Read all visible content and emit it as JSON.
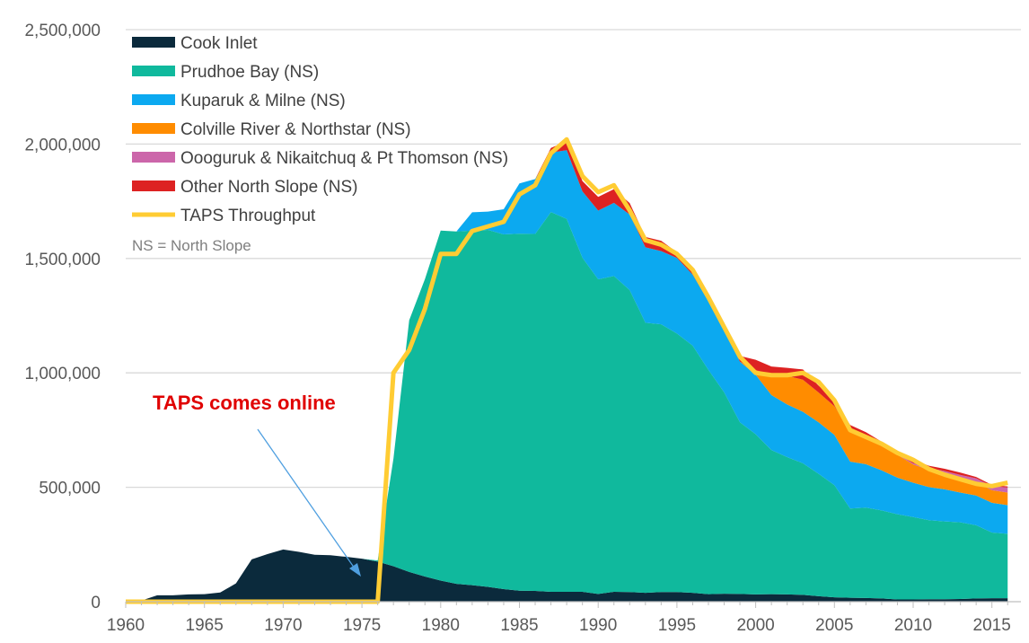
{
  "chart_data": {
    "type": "area",
    "stacked": true,
    "x": [
      1960,
      1961,
      1962,
      1963,
      1964,
      1965,
      1966,
      1967,
      1968,
      1969,
      1970,
      1971,
      1972,
      1973,
      1974,
      1975,
      1976,
      1977,
      1978,
      1979,
      1980,
      1981,
      1982,
      1983,
      1984,
      1985,
      1986,
      1987,
      1988,
      1989,
      1990,
      1991,
      1992,
      1993,
      1994,
      1995,
      1996,
      1997,
      1998,
      1999,
      2000,
      2001,
      2002,
      2003,
      2004,
      2005,
      2006,
      2007,
      2008,
      2009,
      2010,
      2011,
      2012,
      2013,
      2014,
      2015,
      2016
    ],
    "xlim": [
      1960,
      2016.5
    ],
    "ylim": [
      0,
      2500000
    ],
    "xticks": [
      "1960",
      "1965",
      "1970",
      "1975",
      "1980",
      "1985",
      "1990",
      "1995",
      "2000",
      "2005",
      "2010",
      "2015"
    ],
    "yticks": [
      "0",
      "500,000",
      "1,000,000",
      "1,500,000",
      "2,000,000",
      "2,500,000"
    ],
    "series": [
      {
        "name": "Cook Inlet",
        "color": "#0b2a3c",
        "values": [
          0,
          5000,
          28000,
          28000,
          32000,
          33000,
          40000,
          80000,
          185000,
          208000,
          228000,
          218000,
          205000,
          203000,
          196000,
          188000,
          175000,
          155000,
          130000,
          110000,
          92000,
          78000,
          72000,
          65000,
          55000,
          48000,
          47000,
          43000,
          43000,
          43000,
          34000,
          43000,
          42000,
          39000,
          42000,
          42000,
          39000,
          33000,
          35000,
          34000,
          32000,
          33000,
          32000,
          30000,
          24000,
          19000,
          17000,
          16000,
          14000,
          10000,
          10000,
          11000,
          11000,
          12000,
          14000,
          15000,
          15000
        ]
      },
      {
        "name": "Prudhoe Bay (NS)",
        "color": "#10b99d",
        "values": [
          0,
          0,
          0,
          0,
          0,
          0,
          0,
          0,
          0,
          0,
          0,
          0,
          0,
          0,
          0,
          0,
          5000,
          470000,
          1100000,
          1300000,
          1530000,
          1540000,
          1550000,
          1560000,
          1550000,
          1560000,
          1560000,
          1660000,
          1630000,
          1460000,
          1375000,
          1380000,
          1320000,
          1180000,
          1170000,
          1130000,
          1080000,
          980000,
          880000,
          750000,
          700000,
          630000,
          600000,
          575000,
          535000,
          490000,
          390000,
          395000,
          385000,
          372000,
          360000,
          345000,
          340000,
          335000,
          320000,
          287000,
          282000
        ]
      },
      {
        "name": "Kuparuk & Milne (NS)",
        "color": "#0ca9f0",
        "values": [
          0,
          0,
          0,
          0,
          0,
          0,
          0,
          0,
          0,
          0,
          0,
          0,
          0,
          0,
          0,
          0,
          0,
          0,
          0,
          0,
          0,
          0,
          80000,
          80000,
          110000,
          220000,
          240000,
          260000,
          300000,
          290000,
          300000,
          320000,
          330000,
          330000,
          320000,
          330000,
          310000,
          300000,
          275000,
          265000,
          260000,
          240000,
          230000,
          225000,
          225000,
          220000,
          205000,
          190000,
          175000,
          160000,
          150000,
          145000,
          140000,
          130000,
          130000,
          130000,
          125000
        ]
      },
      {
        "name": "Colville River & Northstar (NS)",
        "color": "#ff8c00",
        "values": [
          0,
          0,
          0,
          0,
          0,
          0,
          0,
          0,
          0,
          0,
          0,
          0,
          0,
          0,
          0,
          0,
          0,
          0,
          0,
          0,
          0,
          0,
          0,
          0,
          0,
          0,
          0,
          0,
          0,
          0,
          0,
          0,
          0,
          0,
          0,
          0,
          0,
          0,
          0,
          0,
          20000,
          90000,
          125000,
          140000,
          130000,
          125000,
          135000,
          125000,
          110000,
          100000,
          80000,
          75000,
          70000,
          65000,
          60000,
          55000,
          55000
        ]
      },
      {
        "name": "Oooguruk & Nikaitchuq & Pt Thomson (NS)",
        "color": "#cc66aa",
        "values": [
          0,
          0,
          0,
          0,
          0,
          0,
          0,
          0,
          0,
          0,
          0,
          0,
          0,
          0,
          0,
          0,
          0,
          0,
          0,
          0,
          0,
          0,
          0,
          0,
          0,
          0,
          0,
          0,
          0,
          0,
          0,
          0,
          0,
          0,
          0,
          0,
          0,
          0,
          0,
          0,
          0,
          0,
          0,
          0,
          0,
          0,
          0,
          0,
          0,
          2000,
          5000,
          8000,
          10000,
          12000,
          15000,
          18000,
          22000
        ]
      },
      {
        "name": "Other North Slope (NS)",
        "color": "#dd2222",
        "values": [
          0,
          0,
          0,
          0,
          0,
          0,
          0,
          0,
          0,
          0,
          0,
          0,
          0,
          0,
          0,
          0,
          0,
          0,
          0,
          0,
          0,
          0,
          0,
          0,
          0,
          0,
          0,
          20000,
          40000,
          45000,
          60000,
          60000,
          50000,
          45000,
          45000,
          25000,
          20000,
          15000,
          15000,
          25000,
          45000,
          35000,
          35000,
          45000,
          30000,
          25000,
          25000,
          15000,
          15000,
          15000,
          15000,
          10000,
          10000,
          10000,
          6000,
          5000,
          5000
        ]
      }
    ],
    "line": {
      "name": "TAPS Throughput",
      "color": "#ffcc33",
      "values": [
        0,
        0,
        0,
        0,
        0,
        0,
        0,
        0,
        0,
        0,
        0,
        0,
        0,
        0,
        0,
        0,
        0,
        1000000,
        1100000,
        1280000,
        1520000,
        1520000,
        1620000,
        1640000,
        1660000,
        1780000,
        1820000,
        1960000,
        2020000,
        1860000,
        1790000,
        1820000,
        1710000,
        1580000,
        1560000,
        1520000,
        1450000,
        1330000,
        1200000,
        1070000,
        1000000,
        990000,
        990000,
        1000000,
        960000,
        880000,
        750000,
        720000,
        690000,
        650000,
        620000,
        580000,
        555000,
        535000,
        515000,
        505000,
        520000
      ]
    },
    "annotation": "TAPS comes online",
    "note": "NS = North Slope",
    "legend_position": "top-left",
    "grid": true
  }
}
